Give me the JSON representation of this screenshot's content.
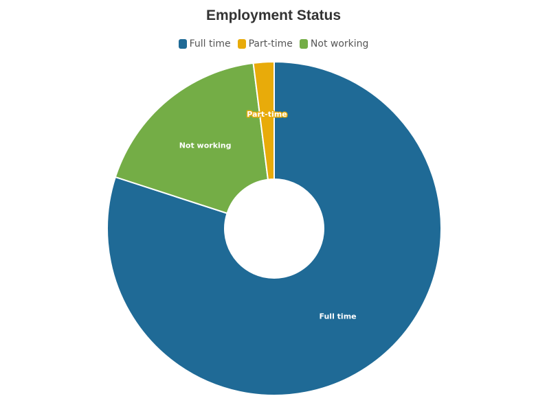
{
  "chart_data": {
    "type": "pie",
    "title": "Employment Status",
    "donut": true,
    "legend_position": "top",
    "categories": [
      "Full time",
      "Part-time",
      "Not working"
    ],
    "values": [
      80,
      2,
      18
    ],
    "colors": [
      "#1f6a96",
      "#e8ab0a",
      "#74ad46"
    ]
  }
}
